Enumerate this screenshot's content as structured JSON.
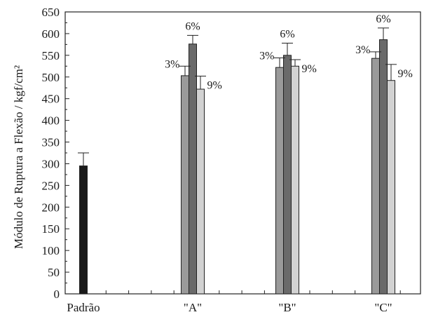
{
  "chart_data": {
    "type": "bar",
    "title": "",
    "xlabel": "",
    "ylabel": "Módulo de Ruptura a Flexão  / kgf/cm²",
    "ylim": [
      0,
      650
    ],
    "y_ticks": [
      0,
      50,
      100,
      150,
      200,
      250,
      300,
      350,
      400,
      450,
      500,
      550,
      600,
      650
    ],
    "categories": [
      "Padrão",
      "\"A\"",
      "\"B\"",
      "\"C\""
    ],
    "grid": false,
    "legend": "none",
    "groups": [
      {
        "category": "Padrão",
        "bars": [
          {
            "label": "",
            "value": 295,
            "error": 30,
            "color": "#1a1a1a"
          }
        ]
      },
      {
        "category": "\"A\"",
        "bars": [
          {
            "label": "3%",
            "value": 503,
            "error": 22,
            "color": "#9a9a9a"
          },
          {
            "label": "6%",
            "value": 576,
            "error": 20,
            "color": "#6a6a6a"
          },
          {
            "label": "9%",
            "value": 472,
            "error": 30,
            "color": "#d2d2d2"
          }
        ]
      },
      {
        "category": "\"B\"",
        "bars": [
          {
            "label": "3%",
            "value": 522,
            "error": 22,
            "color": "#9a9a9a"
          },
          {
            "label": "6%",
            "value": 550,
            "error": 28,
            "color": "#6a6a6a"
          },
          {
            "label": "9%",
            "value": 525,
            "error": 15,
            "color": "#d2d2d2"
          }
        ]
      },
      {
        "category": "\"C\"",
        "bars": [
          {
            "label": "3%",
            "value": 543,
            "error": 15,
            "color": "#9a9a9a"
          },
          {
            "label": "6%",
            "value": 586,
            "error": 27,
            "color": "#6a6a6a"
          },
          {
            "label": "9%",
            "value": 492,
            "error": 37,
            "color": "#d2d2d2"
          }
        ]
      }
    ]
  }
}
